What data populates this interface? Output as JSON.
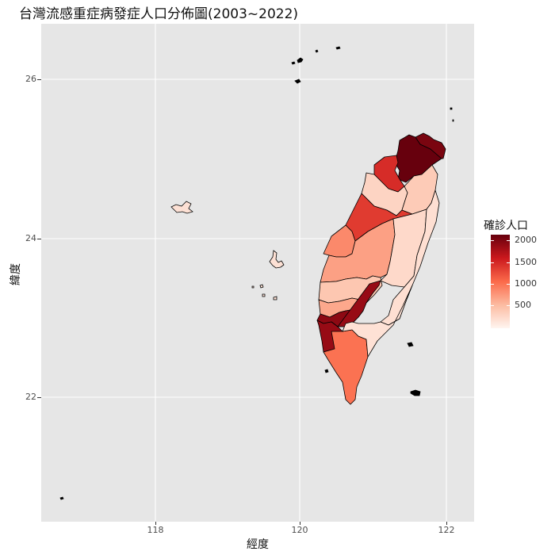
{
  "title": "台灣流感重症病發症人口分佈圖(2003~2022)",
  "axes": {
    "xlabel": "經度",
    "ylabel": "緯度",
    "x_ticks": [
      "118",
      "120",
      "122"
    ],
    "y_ticks": [
      "26",
      "24",
      "22"
    ]
  },
  "legend": {
    "title": "確診人口",
    "ticks": [
      "2000",
      "1500",
      "1000",
      "500"
    ]
  },
  "chart_data": {
    "type": "heatmap",
    "title": "台灣流感重症病發症人口分佈圖(2003~2022)",
    "xlabel": "經度",
    "ylabel": "緯度",
    "xlim": [
      116.6,
      122.35
    ],
    "ylim": [
      20.6,
      26.6
    ],
    "grid": true,
    "legend_position": "right",
    "color_scale": [
      "#fff5f0",
      "#fcbba1",
      "#fb6a4a",
      "#cb181d",
      "#67000d"
    ],
    "value_range": [
      0,
      2100
    ],
    "regions": [
      {
        "value": 2100
      },
      {
        "value": 1450
      },
      {
        "value": 300
      },
      {
        "value": 380
      },
      {
        "value": 1350
      },
      {
        "value": 850
      },
      {
        "value": 700
      },
      {
        "value": 420
      },
      {
        "value": 650
      },
      {
        "value": 1900
      },
      {
        "value": 1850
      },
      {
        "value": 1000
      },
      {
        "value": 250
      },
      {
        "value": 200
      },
      {
        "value": 180
      },
      {
        "value": 2000
      }
    ]
  }
}
